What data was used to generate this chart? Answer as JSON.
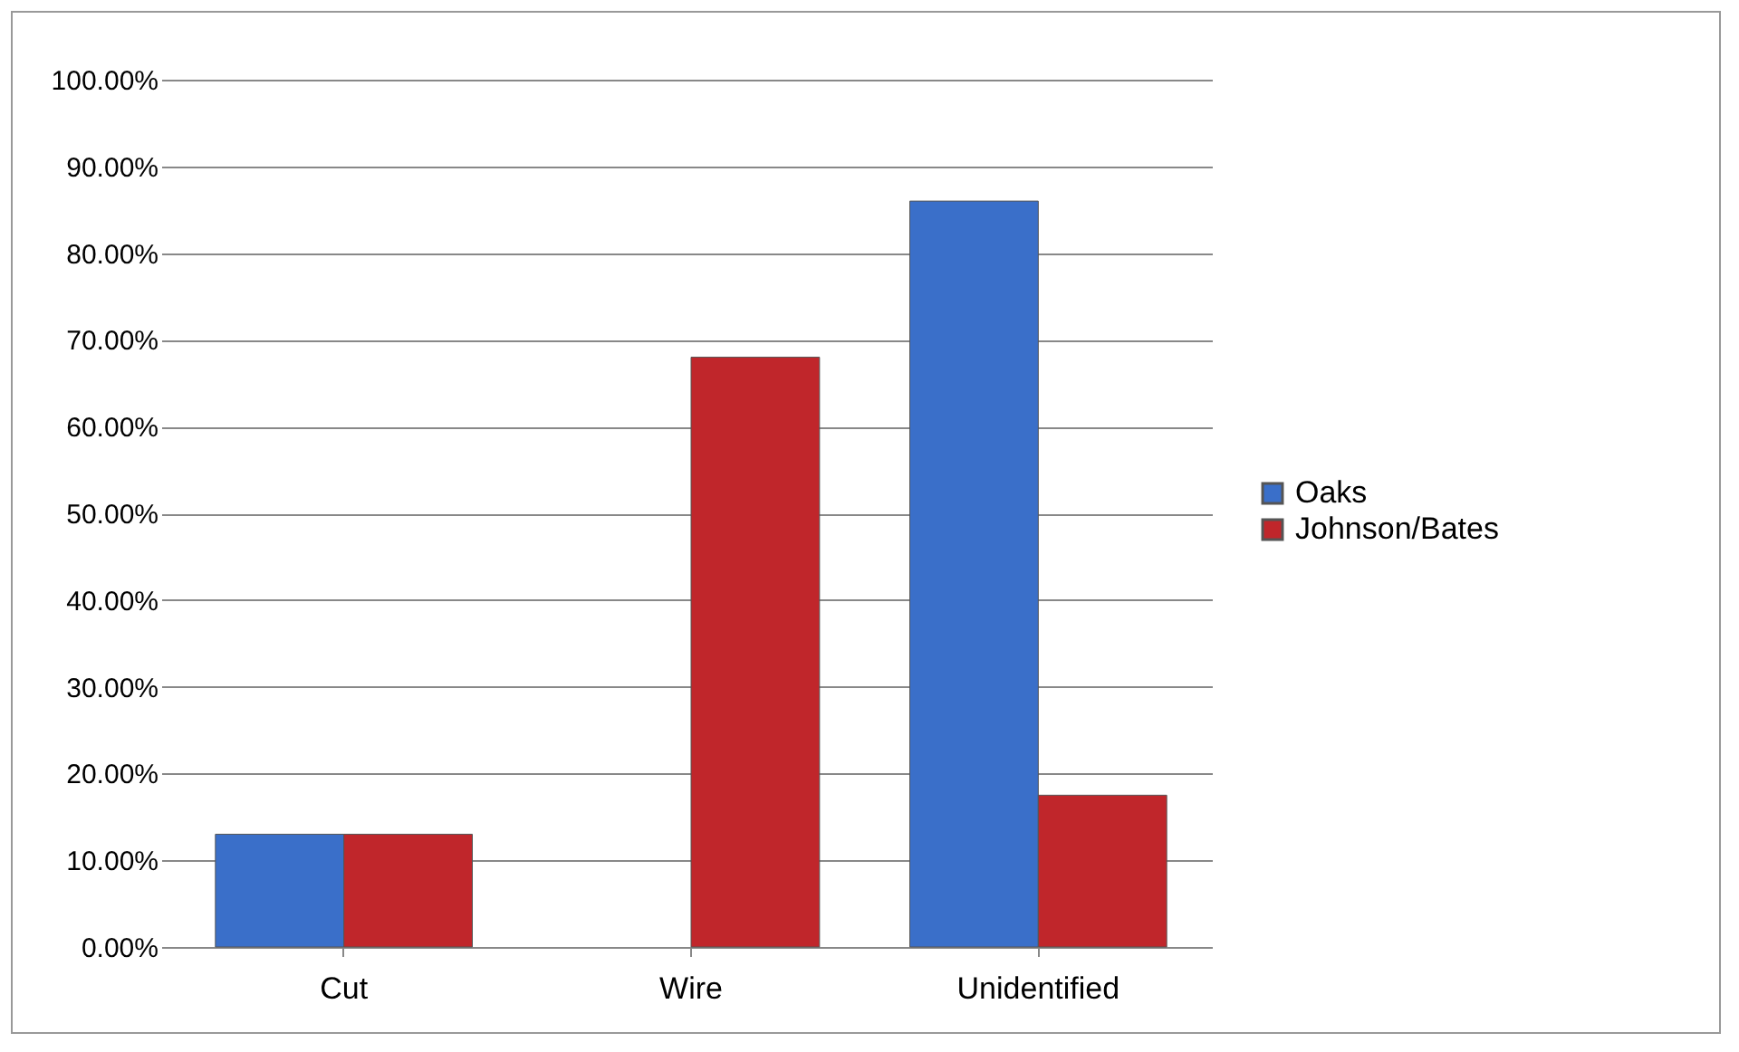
{
  "chart_data": {
    "type": "bar",
    "categories": [
      "Cut",
      "Wire",
      "Unidentified"
    ],
    "series": [
      {
        "name": "Oaks",
        "color": "#3a6fc9",
        "values": [
          13,
          null,
          86
        ]
      },
      {
        "name": "Johnson/Bates",
        "color": "#c0262b",
        "values": [
          13,
          68,
          17.5
        ]
      }
    ],
    "ylim": [
      0,
      100
    ],
    "yticks": [
      {
        "value": 0,
        "label": "0.00%"
      },
      {
        "value": 10,
        "label": "10.00%"
      },
      {
        "value": 20,
        "label": "20.00%"
      },
      {
        "value": 30,
        "label": "30.00%"
      },
      {
        "value": 40,
        "label": "40.00%"
      },
      {
        "value": 50,
        "label": "50.00%"
      },
      {
        "value": 60,
        "label": "60.00%"
      },
      {
        "value": 70,
        "label": "70.00%"
      },
      {
        "value": 80,
        "label": "80.00%"
      },
      {
        "value": 90,
        "label": "90.00%"
      },
      {
        "value": 100,
        "label": "100.00%"
      }
    ],
    "grid": "y",
    "legend": "right"
  }
}
